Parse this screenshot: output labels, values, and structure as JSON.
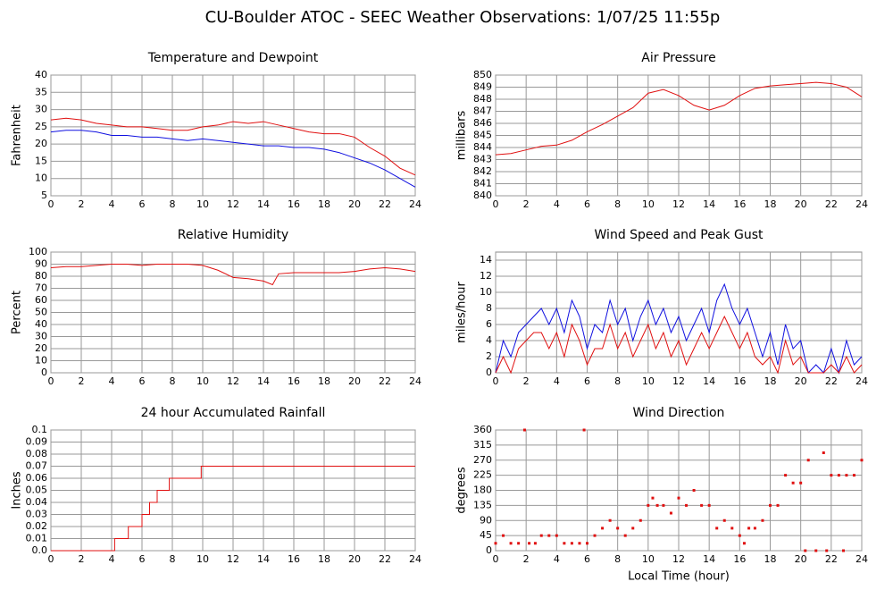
{
  "title": "CU-Boulder ATOC - SEEC Weather Observations: 1/07/25 11:55p",
  "chart_data": [
    {
      "type": "line",
      "title": "Temperature and Dewpoint",
      "ylabel": "Fahrenheit",
      "grid": true,
      "xlim": [
        0,
        24
      ],
      "xticks": [
        0,
        2,
        4,
        6,
        8,
        10,
        12,
        14,
        16,
        18,
        20,
        22,
        24
      ],
      "ylim": [
        5,
        40
      ],
      "yticks": [
        5,
        10,
        15,
        20,
        25,
        30,
        35,
        40
      ],
      "x": [
        0,
        1,
        2,
        3,
        4,
        5,
        6,
        7,
        8,
        9,
        10,
        11,
        12,
        13,
        14,
        15,
        16,
        17,
        18,
        19,
        20,
        21,
        22,
        23,
        24
      ],
      "series": [
        {
          "color": "#e01010",
          "values": [
            27,
            27.5,
            27,
            26,
            25.5,
            25,
            25,
            24.5,
            24,
            24,
            25,
            25.5,
            26.5,
            26,
            26.5,
            25.5,
            24.5,
            23.5,
            23,
            23,
            22,
            19,
            16.5,
            13,
            11
          ]
        },
        {
          "color": "#1010e0",
          "values": [
            23.5,
            24,
            24,
            23.5,
            22.5,
            22.5,
            22,
            22,
            21.5,
            21,
            21.5,
            21,
            20.5,
            20,
            19.5,
            19.5,
            19,
            19,
            18.5,
            17.5,
            16,
            14.5,
            12.5,
            10,
            7.5
          ]
        }
      ]
    },
    {
      "type": "line",
      "title": "Air Pressure",
      "ylabel": "millibars",
      "grid": true,
      "xlim": [
        0,
        24
      ],
      "xticks": [
        0,
        2,
        4,
        6,
        8,
        10,
        12,
        14,
        16,
        18,
        20,
        22,
        24
      ],
      "ylim": [
        840,
        850
      ],
      "yticks": [
        840,
        841,
        842,
        843,
        844,
        845,
        846,
        847,
        848,
        849,
        850
      ],
      "x": [
        0,
        1,
        2,
        3,
        4,
        5,
        6,
        7,
        8,
        9,
        10,
        11,
        12,
        13,
        14,
        15,
        16,
        17,
        18,
        19,
        20,
        21,
        22,
        23,
        24
      ],
      "series": [
        {
          "color": "#e01010",
          "values": [
            843.4,
            843.5,
            843.8,
            844.1,
            844.2,
            844.6,
            845.3,
            845.9,
            846.6,
            847.3,
            848.5,
            848.8,
            848.3,
            847.5,
            847.1,
            847.5,
            848.3,
            848.9,
            849.1,
            849.2,
            849.3,
            849.4,
            849.3,
            849,
            848.2
          ]
        }
      ]
    },
    {
      "type": "line",
      "title": "Relative Humidity",
      "ylabel": "Percent",
      "grid": true,
      "xlim": [
        0,
        24
      ],
      "xticks": [
        0,
        2,
        4,
        6,
        8,
        10,
        12,
        14,
        16,
        18,
        20,
        22,
        24
      ],
      "ylim": [
        0,
        100
      ],
      "yticks": [
        0,
        10,
        20,
        30,
        40,
        50,
        60,
        70,
        80,
        90,
        100
      ],
      "x": [
        0,
        1,
        2,
        3,
        4,
        5,
        6,
        7,
        8,
        9,
        10,
        11,
        12,
        13,
        14,
        14.6,
        15,
        16,
        17,
        18,
        19,
        20,
        21,
        22,
        23,
        24
      ],
      "series": [
        {
          "color": "#e01010",
          "values": [
            87,
            88,
            88,
            89,
            90,
            90,
            89,
            90,
            90,
            90,
            89,
            85,
            79,
            78,
            76,
            73,
            82,
            83,
            83,
            83,
            83,
            84,
            86,
            87,
            86,
            84
          ]
        }
      ]
    },
    {
      "type": "line",
      "title": "Wind Speed and Peak Gust",
      "ylabel": "miles/hour",
      "grid": true,
      "xlim": [
        0,
        24
      ],
      "xticks": [
        0,
        2,
        4,
        6,
        8,
        10,
        12,
        14,
        16,
        18,
        20,
        22,
        24
      ],
      "ylim": [
        0,
        15
      ],
      "yticks": [
        0,
        2,
        4,
        6,
        8,
        10,
        12,
        14
      ],
      "x": [
        0,
        0.5,
        1,
        1.5,
        2,
        2.5,
        3,
        3.5,
        4,
        4.5,
        5,
        5.5,
        6,
        6.5,
        7,
        7.5,
        8,
        8.5,
        9,
        9.5,
        10,
        10.5,
        11,
        11.5,
        12,
        12.5,
        13,
        13.5,
        14,
        14.5,
        15,
        15.5,
        16,
        16.5,
        17,
        17.5,
        18,
        18.5,
        19,
        19.5,
        20,
        20.5,
        21,
        21.5,
        22,
        22.5,
        23,
        23.5,
        24
      ],
      "series": [
        {
          "color": "#1010e0",
          "values": [
            0,
            4,
            2,
            5,
            6,
            7,
            8,
            6,
            8,
            5,
            9,
            7,
            3,
            6,
            5,
            9,
            6,
            8,
            4,
            7,
            9,
            6,
            8,
            5,
            7,
            4,
            6,
            8,
            5,
            9,
            11,
            8,
            6,
            8,
            5,
            2,
            5,
            1,
            6,
            3,
            4,
            0,
            1,
            0,
            3,
            0,
            4,
            1,
            2
          ]
        },
        {
          "color": "#e01010",
          "values": [
            0,
            2,
            0,
            3,
            4,
            5,
            5,
            3,
            5,
            2,
            6,
            4,
            1,
            3,
            3,
            6,
            3,
            5,
            2,
            4,
            6,
            3,
            5,
            2,
            4,
            1,
            3,
            5,
            3,
            5,
            7,
            5,
            3,
            5,
            2,
            1,
            2,
            0,
            4,
            1,
            2,
            0,
            0,
            0,
            1,
            0,
            2,
            0,
            1
          ]
        }
      ]
    },
    {
      "type": "line",
      "title": "24 hour Accumulated Rainfall",
      "ylabel": "Inches",
      "grid": true,
      "step": true,
      "xlim": [
        0,
        24
      ],
      "xticks": [
        0,
        2,
        4,
        6,
        8,
        10,
        12,
        14,
        16,
        18,
        20,
        22,
        24
      ],
      "ylim": [
        0,
        0.1
      ],
      "yticks": [
        {
          "value": 0,
          "label": "0.0"
        },
        0.01,
        0.02,
        0.03,
        0.04,
        0.05,
        0.06,
        0.07,
        0.08,
        0.09,
        0.1
      ],
      "x": [
        0,
        4.2,
        5.1,
        6,
        6.5,
        7,
        7.8,
        9.9,
        24
      ],
      "series": [
        {
          "color": "#e01010",
          "values": [
            0,
            0.01,
            0.02,
            0.03,
            0.04,
            0.05,
            0.06,
            0.07,
            0.07
          ]
        }
      ]
    },
    {
      "type": "scatter",
      "title": "Wind Direction",
      "ylabel": "degrees",
      "xlabel": "Local Time (hour)",
      "grid": true,
      "color": "#e01010",
      "xlim": [
        0,
        24
      ],
      "xticks": [
        0,
        2,
        4,
        6,
        8,
        10,
        12,
        14,
        16,
        18,
        20,
        22,
        24
      ],
      "ylim": [
        0,
        360
      ],
      "yticks": [
        0,
        45,
        90,
        135,
        180,
        225,
        270,
        315,
        360
      ],
      "x": [
        0,
        0.5,
        1,
        1.5,
        1.9,
        2.2,
        2.6,
        3,
        3.5,
        4,
        4.5,
        5,
        5.5,
        5.8,
        6,
        6.5,
        7,
        7.5,
        8,
        8.5,
        9,
        9.5,
        10,
        10.3,
        10.6,
        11,
        11.5,
        12,
        12.5,
        13,
        13.5,
        14,
        14.5,
        15,
        15.5,
        16,
        16.3,
        16.6,
        17,
        17.5,
        18,
        18.5,
        19,
        19.5,
        20,
        20.3,
        20.5,
        21,
        21.5,
        21.7,
        22,
        22.5,
        22.8,
        23,
        23.5,
        24
      ],
      "values": [
        22,
        45,
        22,
        22,
        360,
        22,
        22,
        45,
        45,
        45,
        22,
        22,
        22,
        360,
        22,
        45,
        67,
        90,
        67,
        45,
        67,
        90,
        135,
        157,
        135,
        135,
        112,
        157,
        135,
        180,
        135,
        135,
        67,
        90,
        67,
        45,
        22,
        67,
        67,
        90,
        135,
        135,
        225,
        202,
        202,
        0,
        270,
        0,
        292,
        0,
        225,
        225,
        0,
        225,
        225,
        270
      ]
    }
  ]
}
